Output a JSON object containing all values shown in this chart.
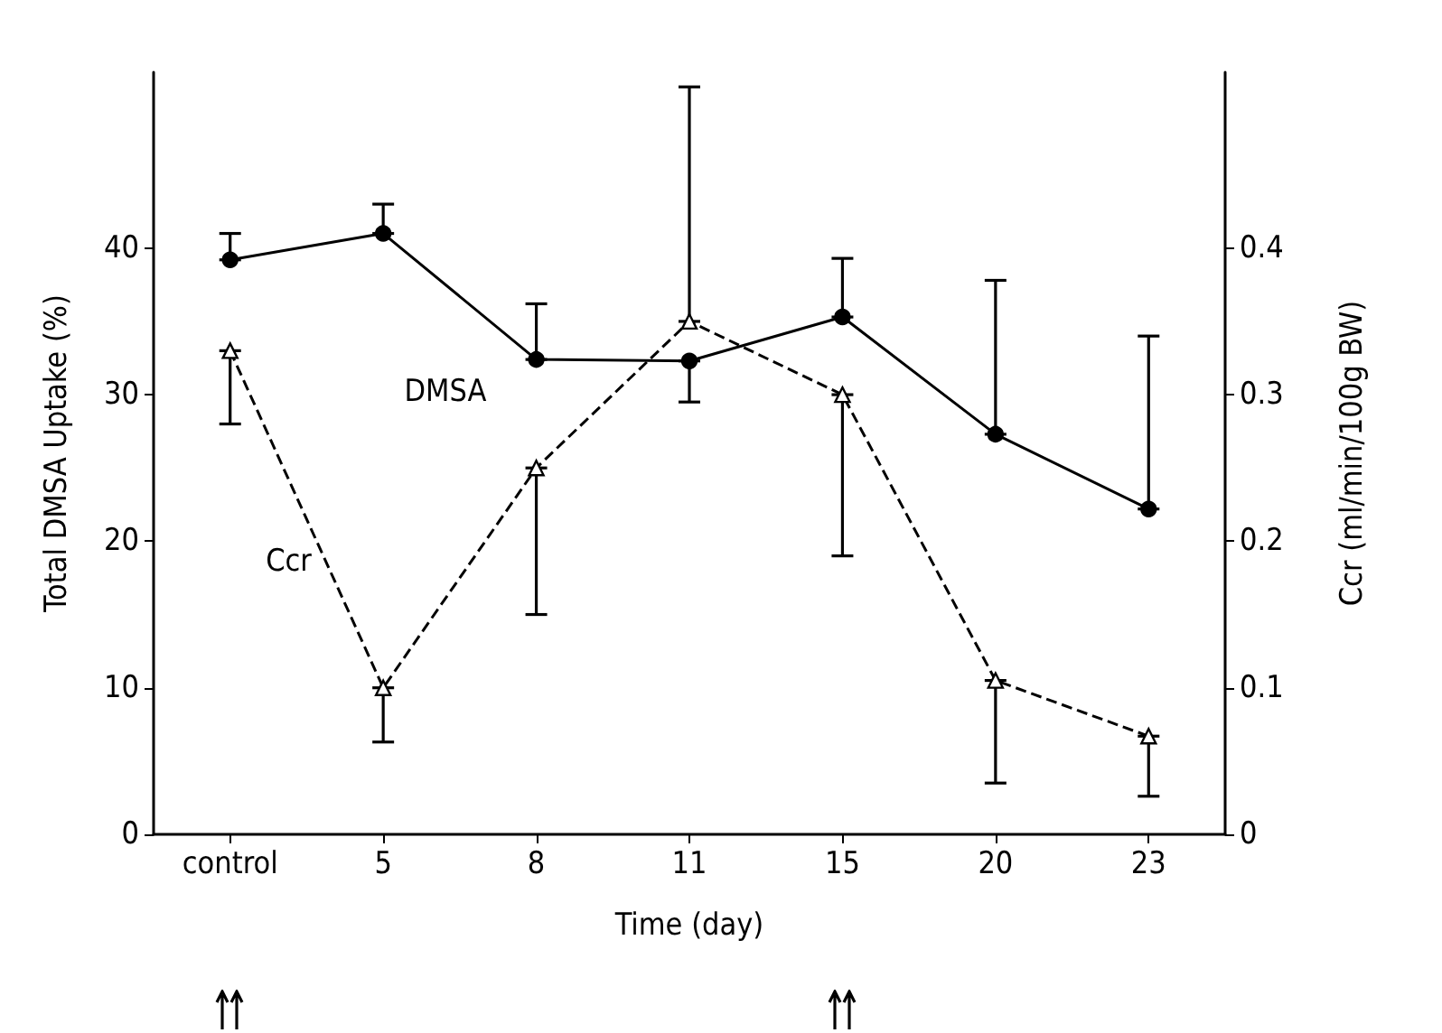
{
  "chart_data": {
    "type": "line",
    "categories": [
      "control",
      "5",
      "8",
      "11",
      "15",
      "20",
      "23"
    ],
    "xlabel": "Time (day)",
    "ylabel": "Total DMSA Uptake (%)",
    "y2label": "Ccr (ml/min/100g BW)",
    "ylim": [
      0,
      52
    ],
    "yticks": [
      0,
      10,
      20,
      30,
      40
    ],
    "y2lim": [
      0,
      0.52
    ],
    "y2ticks": [
      0,
      0.1,
      0.2,
      0.3,
      0.4
    ],
    "grid": false,
    "legend": false,
    "series": [
      {
        "name": "DMSA",
        "color": "#000000",
        "marker": "circle",
        "line_style": "solid",
        "values": [
          39.2,
          41.0,
          32.4,
          32.3,
          35.3,
          27.3,
          22.2
        ],
        "errors": [
          [
            39.2,
            41.0
          ],
          [
            41.0,
            43.0
          ],
          [
            32.4,
            36.2
          ],
          [
            29.5,
            32.3
          ],
          [
            35.3,
            39.3
          ],
          [
            27.3,
            37.8
          ],
          [
            22.2,
            34.0
          ]
        ]
      },
      {
        "name": "Ccr",
        "color": "#000000",
        "marker": "triangle",
        "line_style": "dashed",
        "axis": "y2",
        "values": [
          0.33,
          0.1,
          0.25,
          0.35,
          0.3,
          0.105,
          0.067
        ],
        "errors": [
          [
            0.28,
            0.33
          ],
          [
            0.063,
            0.1
          ],
          [
            0.15,
            0.25
          ],
          [
            0.35,
            0.51
          ],
          [
            0.19,
            0.3
          ],
          [
            0.035,
            0.105
          ],
          [
            0.026,
            0.067
          ]
        ]
      }
    ]
  }
}
